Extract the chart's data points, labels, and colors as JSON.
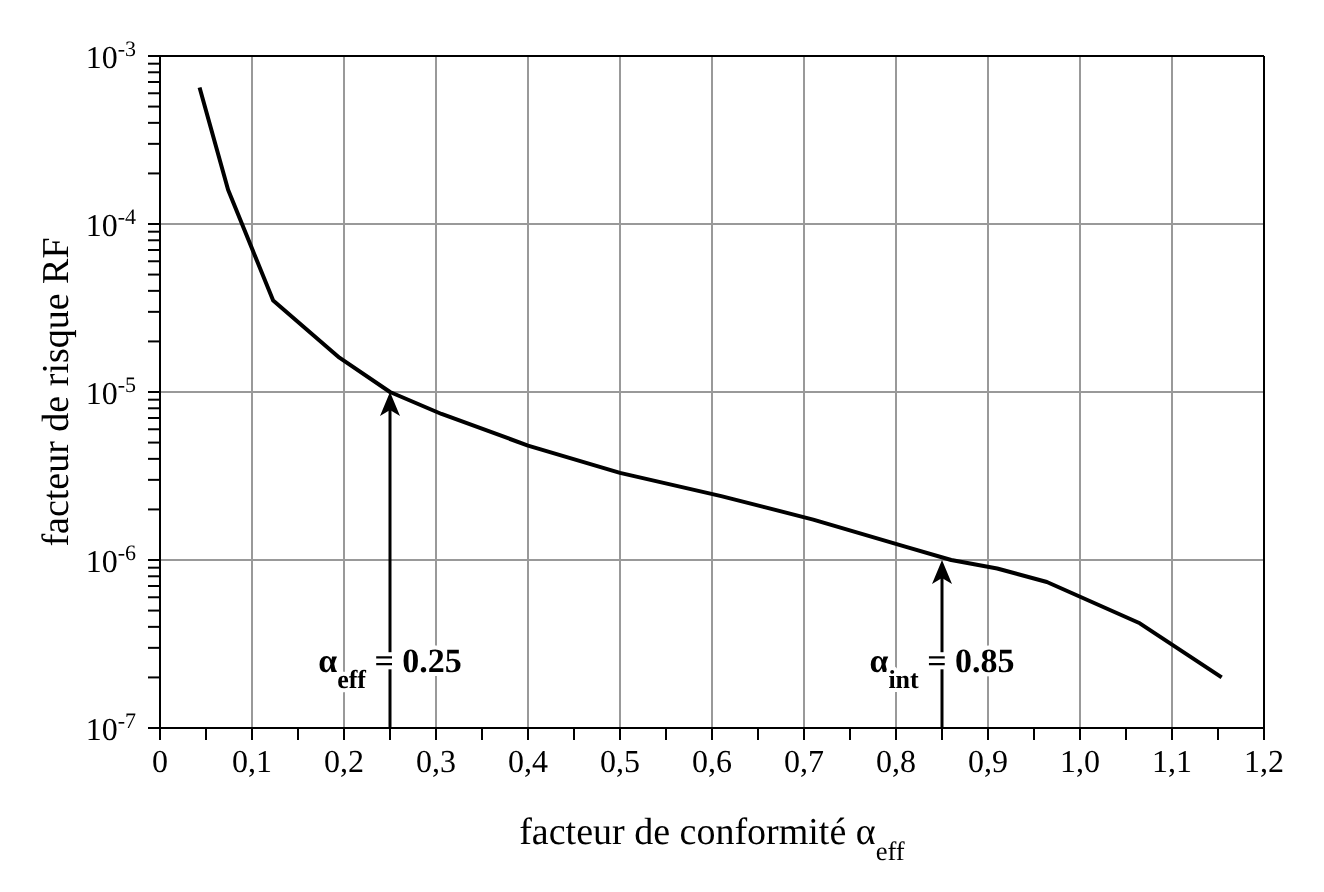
{
  "chart_data": {
    "type": "line",
    "xlabel": "facteur de conformité α$_{eff}$",
    "ylabel": "facteur de risque RF",
    "x": [
      0.043,
      0.074,
      0.123,
      0.195,
      0.25,
      0.306,
      0.4,
      0.5,
      0.61,
      0.71,
      0.81,
      0.86,
      0.91,
      0.964,
      1.065,
      1.154
    ],
    "series": [
      {
        "color": "#000000",
        "values": [
          0.00065,
          0.00016,
          3.5e-05,
          1.6e-05,
          1e-05,
          7.4e-06,
          4.8e-06,
          3.3e-06,
          2.4e-06,
          1.74e-06,
          1.2e-06,
          1e-06,
          8.9e-07,
          7.4e-07,
          4.2e-07,
          2e-07
        ]
      }
    ],
    "log": "y",
    "grid": true,
    "marker": "none",
    "line_style": "solid",
    "xlim": [
      0,
      1.2
    ],
    "xticks": [
      0,
      {
        "value": 0.05,
        "label": null
      },
      {
        "value": 0.1,
        "label": "0,1"
      },
      {
        "value": 0.15,
        "label": null
      },
      {
        "value": 0.2,
        "label": "0,2"
      },
      {
        "value": 0.25,
        "label": null
      },
      {
        "value": 0.3,
        "label": "0,3"
      },
      {
        "value": 0.35,
        "label": null
      },
      {
        "value": 0.4,
        "label": "0,4"
      },
      {
        "value": 0.45,
        "label": null
      },
      {
        "value": 0.5,
        "label": "0,5"
      },
      {
        "value": 0.55,
        "label": null
      },
      {
        "value": 0.6,
        "label": "0,6"
      },
      {
        "value": 0.65,
        "label": null
      },
      {
        "value": 0.7,
        "label": "0,7"
      },
      {
        "value": 0.75,
        "label": null
      },
      {
        "value": 0.8,
        "label": "0,8"
      },
      {
        "value": 0.85,
        "label": null
      },
      {
        "value": 0.9,
        "label": "0,9"
      },
      {
        "value": 0.95,
        "label": null
      },
      {
        "value": 1.0,
        "label": "1,0"
      },
      {
        "value": 1.05,
        "label": null
      },
      {
        "value": 1.1,
        "label": "1,1"
      },
      {
        "value": 1.15,
        "label": null
      },
      {
        "value": 1.2,
        "label": "1,2"
      }
    ],
    "ylim": [
      1e-07,
      0.001
    ],
    "yticks": [
      {
        "value": 1e-07,
        "label": "10$^{-7}$"
      },
      {
        "value": 2e-07,
        "label": null
      },
      {
        "value": 3e-07,
        "label": null
      },
      {
        "value": 4e-07,
        "label": null
      },
      {
        "value": 5e-07,
        "label": null
      },
      {
        "value": 6e-07,
        "label": null
      },
      {
        "value": 7e-07,
        "label": null
      },
      {
        "value": 8e-07,
        "label": null
      },
      {
        "value": 9e-07,
        "label": null
      },
      {
        "value": 1e-06,
        "label": "10$^{-6}$"
      },
      {
        "value": 2e-06,
        "label": null
      },
      {
        "value": 3e-06,
        "label": null
      },
      {
        "value": 4e-06,
        "label": null
      },
      {
        "value": 5e-06,
        "label": null
      },
      {
        "value": 6e-06,
        "label": null
      },
      {
        "value": 7e-06,
        "label": null
      },
      {
        "value": 8e-06,
        "label": null
      },
      {
        "value": 9e-06,
        "label": null
      },
      {
        "value": 1e-05,
        "label": "10$^{-5}$"
      },
      {
        "value": 2e-05,
        "label": null
      },
      {
        "value": 3e-05,
        "label": null
      },
      {
        "value": 4e-05,
        "label": null
      },
      {
        "value": 5e-05,
        "label": null
      },
      {
        "value": 6e-05,
        "label": null
      },
      {
        "value": 7e-05,
        "label": null
      },
      {
        "value": 8e-05,
        "label": null
      },
      {
        "value": 9e-05,
        "label": null
      },
      {
        "value": 0.0001,
        "label": "10$^{-4}$"
      },
      {
        "value": 0.0002,
        "label": null
      },
      {
        "value": 0.0003,
        "label": null
      },
      {
        "value": 0.0004,
        "label": null
      },
      {
        "value": 0.0005,
        "label": null
      },
      {
        "value": 0.0006,
        "label": null
      },
      {
        "value": 0.0007,
        "label": null
      },
      {
        "value": 0.0008,
        "label": null
      },
      {
        "value": 0.0009,
        "label": null
      },
      {
        "value": 0.001,
        "label": "10$^{-3}$"
      }
    ],
    "annotations": [
      {
        "text": "α$_{eff}$ = 0.25",
        "x": 0.25,
        "y": 1e-05
      },
      {
        "text": "α$_{int}$ = 0.85",
        "x": 0.85,
        "y": 1e-06
      }
    ]
  }
}
